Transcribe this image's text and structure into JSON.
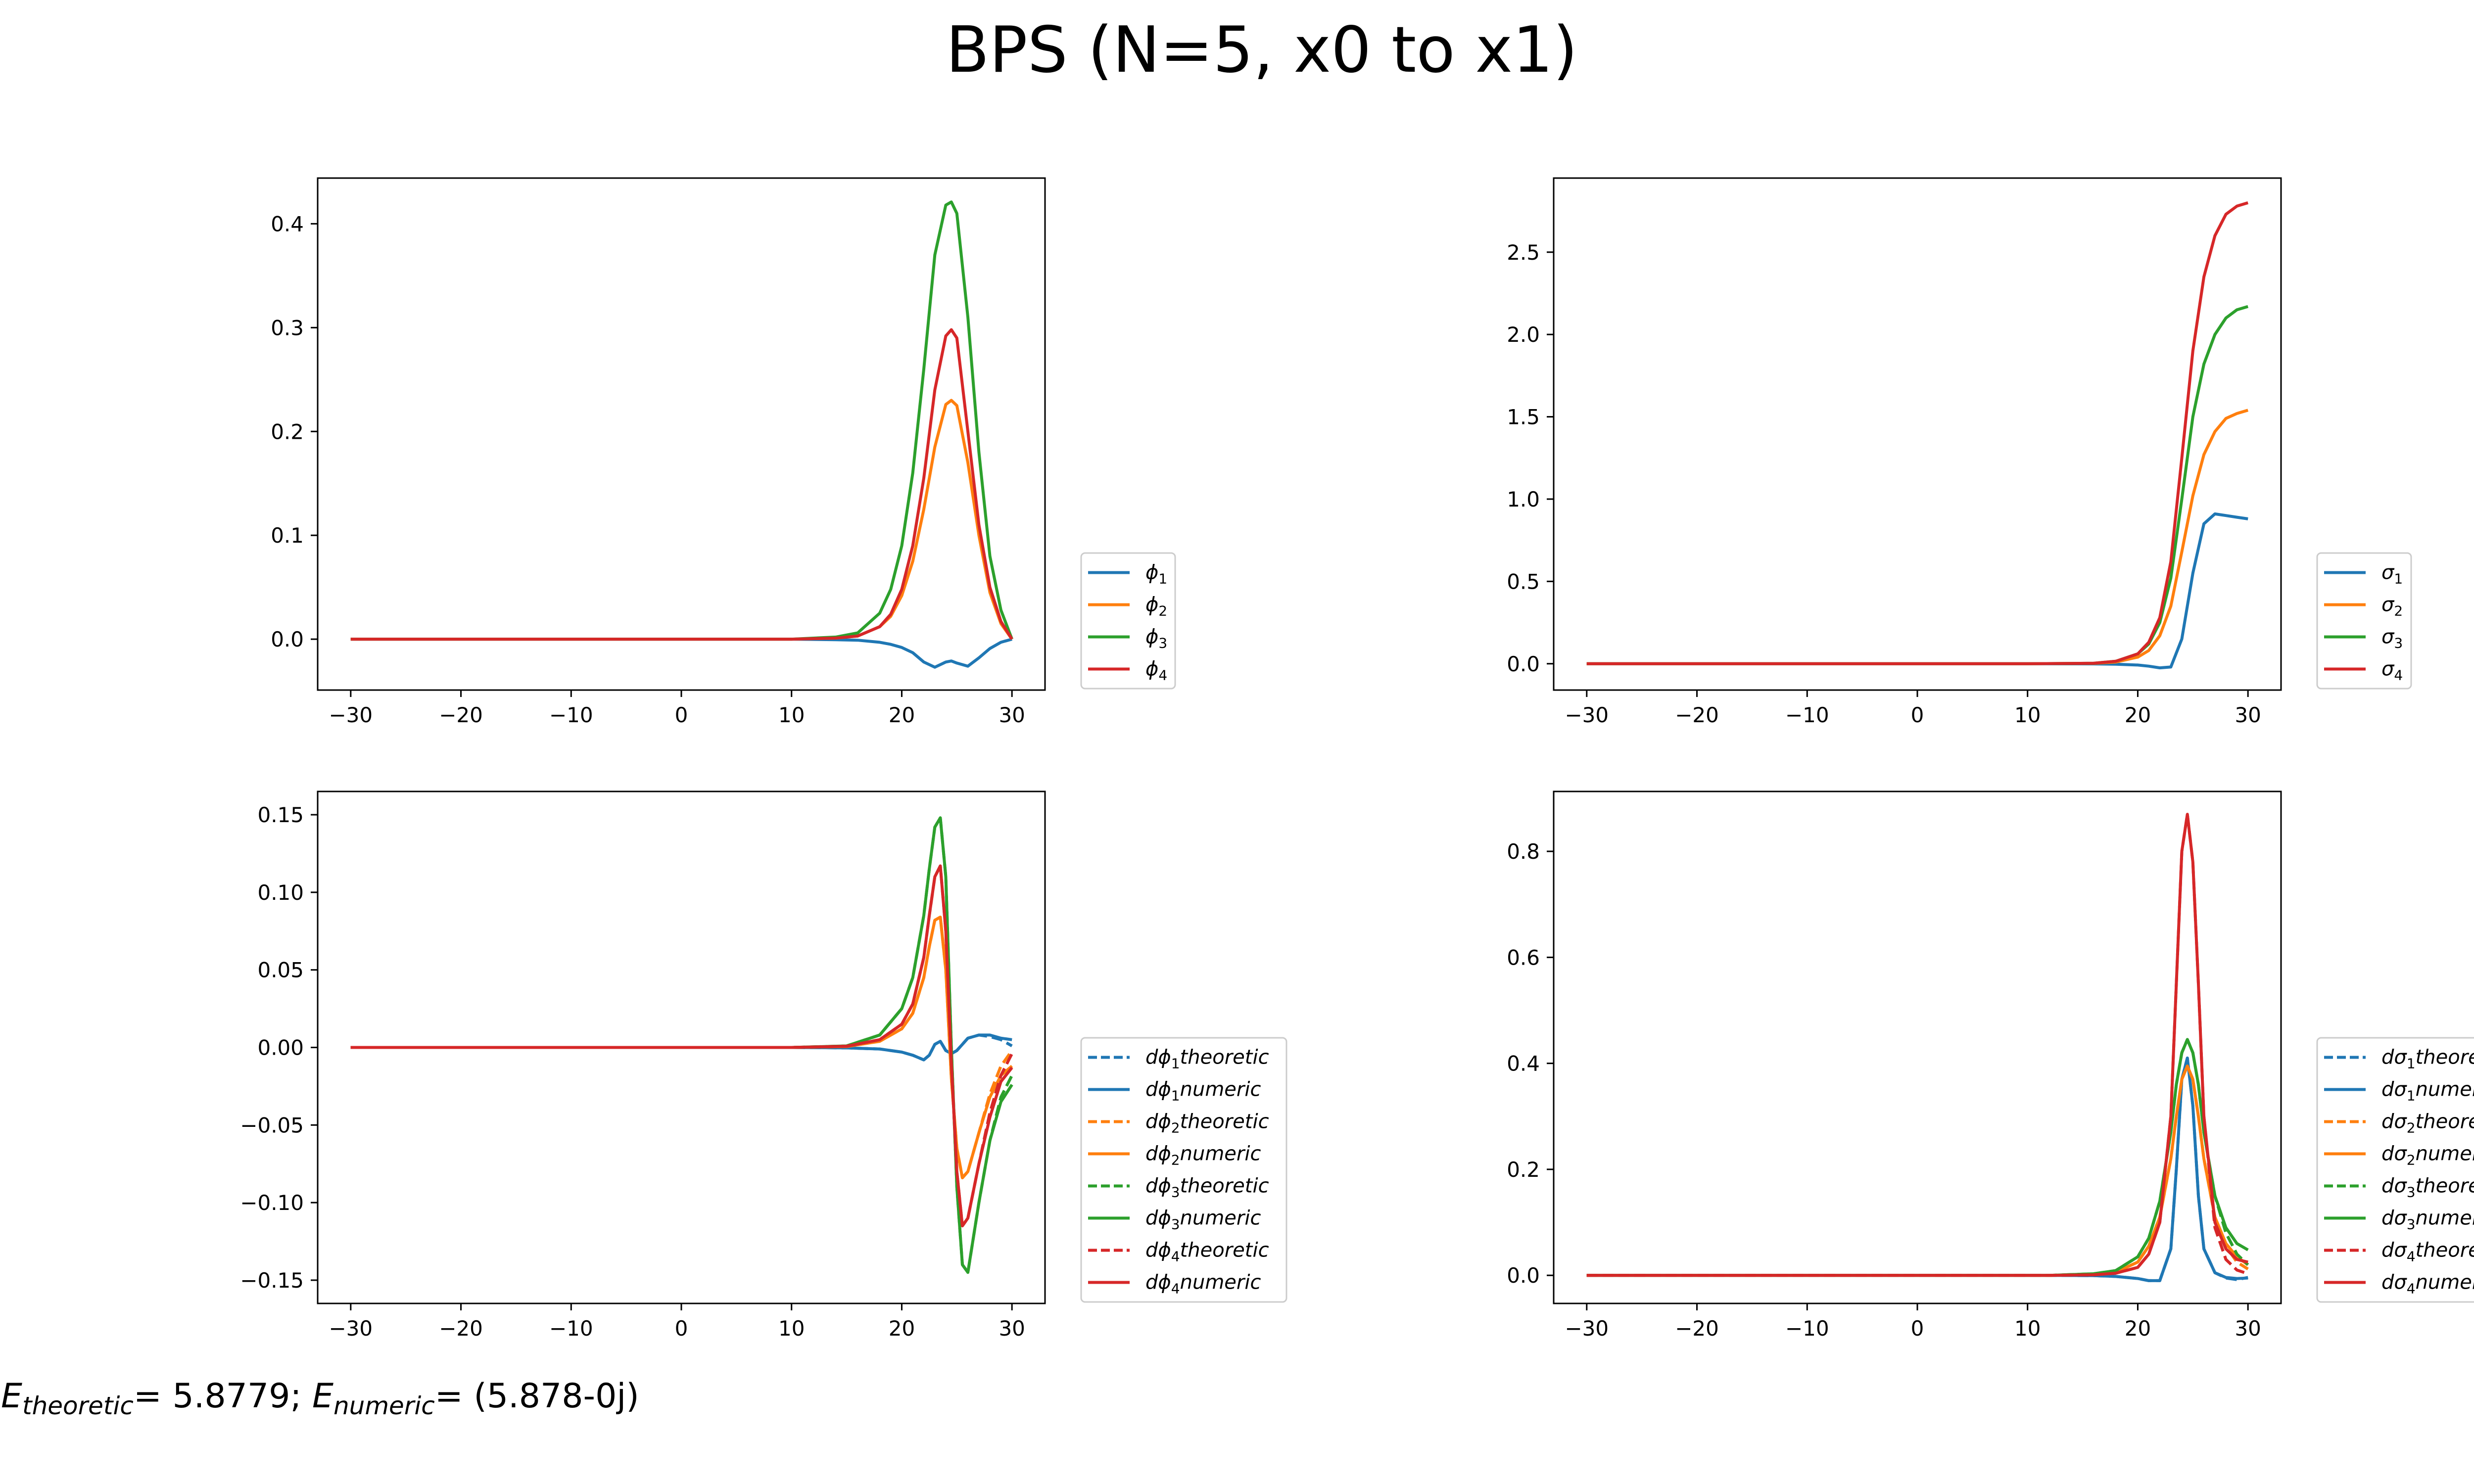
{
  "figure": {
    "title": "BPS (N=5, x0 to x1)",
    "energy": {
      "theoretic_symbol": "E",
      "theoretic_sub": "theoretic",
      "theoretic_value": "= 5.8779; ",
      "numeric_symbol": "E",
      "numeric_sub": "numeric",
      "numeric_value": "= (5.878-0j)"
    }
  },
  "colors": {
    "c1": "#1f77b4",
    "c2": "#ff7f0e",
    "c3": "#2ca02c",
    "c4": "#d62728"
  },
  "chart_data": [
    {
      "id": "phi",
      "type": "line",
      "title": "",
      "xlabel": "",
      "ylabel": "",
      "xlim": [
        -33,
        33
      ],
      "ylim": [
        -0.049,
        0.444
      ],
      "xticks": [
        -30,
        -20,
        -10,
        0,
        10,
        20,
        30
      ],
      "xtick_labels": [
        "−30",
        "−20",
        "−10",
        "0",
        "10",
        "20",
        "30"
      ],
      "yticks": [
        0.0,
        0.1,
        0.2,
        0.3,
        0.4
      ],
      "ytick_labels": [
        "0.0",
        "0.1",
        "0.2",
        "0.3",
        "0.4"
      ],
      "grid": false,
      "legend_loc": "outside-right-bottom",
      "x": [
        -30,
        10,
        14,
        16,
        18,
        19,
        20,
        21,
        22,
        23,
        24,
        24.5,
        25,
        26,
        27,
        28,
        29,
        30
      ],
      "series": [
        {
          "symbol": "ϕ",
          "sub": "1",
          "color": "#1f77b4",
          "dash": "solid",
          "values": [
            0,
            0,
            -0.0005,
            -0.001,
            -0.003,
            -0.005,
            -0.008,
            -0.013,
            -0.022,
            -0.027,
            -0.022,
            -0.021,
            -0.023,
            -0.026,
            -0.018,
            -0.009,
            -0.003,
            0
          ]
        },
        {
          "symbol": "ϕ",
          "sub": "2",
          "color": "#ff7f0e",
          "dash": "solid",
          "values": [
            0,
            0,
            0.001,
            0.003,
            0.012,
            0.022,
            0.042,
            0.075,
            0.125,
            0.185,
            0.226,
            0.23,
            0.225,
            0.17,
            0.1,
            0.045,
            0.015,
            0
          ]
        },
        {
          "symbol": "ϕ",
          "sub": "3",
          "color": "#2ca02c",
          "dash": "solid",
          "values": [
            0,
            0,
            0.002,
            0.006,
            0.025,
            0.048,
            0.09,
            0.16,
            0.26,
            0.37,
            0.418,
            0.421,
            0.41,
            0.31,
            0.18,
            0.08,
            0.028,
            0
          ]
        },
        {
          "symbol": "ϕ",
          "sub": "4",
          "color": "#d62728",
          "dash": "solid",
          "values": [
            0,
            0,
            0.001,
            0.003,
            0.012,
            0.024,
            0.048,
            0.09,
            0.155,
            0.24,
            0.292,
            0.298,
            0.29,
            0.2,
            0.11,
            0.05,
            0.017,
            0
          ]
        }
      ]
    },
    {
      "id": "sigma",
      "type": "line",
      "title": "",
      "xlabel": "",
      "ylabel": "",
      "xlim": [
        -33,
        33
      ],
      "ylim": [
        -0.16,
        2.95
      ],
      "xticks": [
        -30,
        -20,
        -10,
        0,
        10,
        20,
        30
      ],
      "xtick_labels": [
        "−30",
        "−20",
        "−10",
        "0",
        "10",
        "20",
        "30"
      ],
      "yticks": [
        0.0,
        0.5,
        1.0,
        1.5,
        2.0,
        2.5
      ],
      "ytick_labels": [
        "0.0",
        "0.5",
        "1.0",
        "1.5",
        "2.0",
        "2.5"
      ],
      "grid": false,
      "legend_loc": "outside-right-bottom",
      "x": [
        -30,
        10,
        16,
        18,
        20,
        21,
        22,
        23,
        24,
        25,
        26,
        27,
        28,
        29,
        30
      ],
      "series": [
        {
          "symbol": "σ",
          "sub": "1",
          "color": "#1f77b4",
          "dash": "solid",
          "values": [
            0,
            0,
            -0.001,
            -0.003,
            -0.008,
            -0.015,
            -0.025,
            -0.02,
            0.15,
            0.55,
            0.85,
            0.91,
            0.9,
            0.89,
            0.88
          ]
        },
        {
          "symbol": "σ",
          "sub": "2",
          "color": "#ff7f0e",
          "dash": "solid",
          "values": [
            0,
            0,
            0.002,
            0.01,
            0.04,
            0.08,
            0.17,
            0.35,
            0.68,
            1.02,
            1.27,
            1.41,
            1.49,
            1.52,
            1.54
          ]
        },
        {
          "symbol": "σ",
          "sub": "3",
          "color": "#2ca02c",
          "dash": "solid",
          "values": [
            0,
            0,
            0.003,
            0.015,
            0.06,
            0.12,
            0.25,
            0.52,
            1.0,
            1.5,
            1.82,
            2.0,
            2.1,
            2.15,
            2.17
          ]
        },
        {
          "symbol": "σ",
          "sub": "4",
          "color": "#d62728",
          "dash": "solid",
          "values": [
            0,
            0,
            0.003,
            0.015,
            0.06,
            0.13,
            0.28,
            0.62,
            1.25,
            1.9,
            2.35,
            2.6,
            2.73,
            2.78,
            2.8
          ]
        }
      ]
    },
    {
      "id": "dphi",
      "type": "line",
      "title": "",
      "xlabel": "",
      "ylabel": "",
      "xlim": [
        -33,
        33
      ],
      "ylim": [
        -0.165,
        0.165
      ],
      "xticks": [
        -30,
        -20,
        -10,
        0,
        10,
        20,
        30
      ],
      "xtick_labels": [
        "−30",
        "−20",
        "−10",
        "0",
        "10",
        "20",
        "30"
      ],
      "yticks": [
        -0.15,
        -0.1,
        -0.05,
        0.0,
        0.05,
        0.1,
        0.15
      ],
      "ytick_labels": [
        "−0.15",
        "−0.10",
        "−0.05",
        "0.00",
        "0.05",
        "0.10",
        "0.15"
      ],
      "grid": false,
      "legend_loc": "outside-right-bottom",
      "x": [
        -30,
        10,
        15,
        18,
        20,
        21,
        22,
        22.5,
        23,
        23.5,
        24,
        24.5,
        25,
        25.5,
        26,
        27,
        28,
        29,
        30
      ],
      "series": [
        {
          "symbol": "ϕ",
          "sub": "1",
          "prefix": "d",
          "suffix": "theoretic",
          "color": "#1f77b4",
          "dash": "dashed",
          "values": [
            0,
            0,
            -0.0003,
            -0.001,
            -0.003,
            -0.005,
            -0.008,
            -0.005,
            0.002,
            0.004,
            -0.002,
            -0.004,
            -0.002,
            0.002,
            0.006,
            0.008,
            0.007,
            0.005,
            0.001
          ]
        },
        {
          "symbol": "ϕ",
          "sub": "1",
          "prefix": "d",
          "suffix": "numeric",
          "color": "#1f77b4",
          "dash": "solid",
          "values": [
            0,
            0,
            -0.0003,
            -0.001,
            -0.003,
            -0.005,
            -0.008,
            -0.005,
            0.002,
            0.004,
            -0.002,
            -0.004,
            -0.002,
            0.002,
            0.006,
            0.008,
            0.008,
            0.006,
            0.005
          ]
        },
        {
          "symbol": "ϕ",
          "sub": "2",
          "prefix": "d",
          "suffix": "theoretic",
          "color": "#ff7f0e",
          "dash": "dashed",
          "values": [
            0,
            0,
            0.0006,
            0.004,
            0.012,
            0.022,
            0.045,
            0.065,
            0.082,
            0.084,
            0.05,
            -0.02,
            -0.065,
            -0.084,
            -0.08,
            -0.055,
            -0.03,
            -0.012,
            -0.002
          ]
        },
        {
          "symbol": "ϕ",
          "sub": "2",
          "prefix": "d",
          "suffix": "numeric",
          "color": "#ff7f0e",
          "dash": "solid",
          "values": [
            0,
            0,
            0.0006,
            0.004,
            0.012,
            0.022,
            0.045,
            0.065,
            0.082,
            0.084,
            0.05,
            -0.02,
            -0.065,
            -0.084,
            -0.08,
            -0.055,
            -0.032,
            -0.018,
            -0.012
          ]
        },
        {
          "symbol": "ϕ",
          "sub": "3",
          "prefix": "d",
          "suffix": "theoretic",
          "color": "#2ca02c",
          "dash": "dashed",
          "values": [
            0,
            0,
            0.001,
            0.008,
            0.025,
            0.045,
            0.085,
            0.115,
            0.142,
            0.148,
            0.11,
            0.0,
            -0.09,
            -0.14,
            -0.145,
            -0.1,
            -0.06,
            -0.032,
            -0.018
          ]
        },
        {
          "symbol": "ϕ",
          "sub": "3",
          "prefix": "d",
          "suffix": "numeric",
          "color": "#2ca02c",
          "dash": "solid",
          "values": [
            0,
            0,
            0.001,
            0.008,
            0.025,
            0.045,
            0.085,
            0.115,
            0.142,
            0.148,
            0.11,
            0.0,
            -0.09,
            -0.14,
            -0.145,
            -0.1,
            -0.06,
            -0.035,
            -0.024
          ]
        },
        {
          "symbol": "ϕ",
          "sub": "4",
          "prefix": "d",
          "suffix": "theoretic",
          "color": "#d62728",
          "dash": "dashed",
          "values": [
            0,
            0,
            0.0008,
            0.005,
            0.015,
            0.028,
            0.058,
            0.085,
            0.11,
            0.117,
            0.075,
            -0.01,
            -0.08,
            -0.115,
            -0.11,
            -0.075,
            -0.042,
            -0.018,
            -0.004
          ]
        },
        {
          "symbol": "ϕ",
          "sub": "4",
          "prefix": "d",
          "suffix": "numeric",
          "color": "#d62728",
          "dash": "solid",
          "values": [
            0,
            0,
            0.0008,
            0.005,
            0.015,
            0.028,
            0.058,
            0.085,
            0.11,
            0.117,
            0.075,
            -0.01,
            -0.08,
            -0.115,
            -0.11,
            -0.075,
            -0.045,
            -0.022,
            -0.013
          ]
        }
      ]
    },
    {
      "id": "dsigma",
      "type": "line",
      "title": "",
      "xlabel": "",
      "ylabel": "",
      "xlim": [
        -33,
        33
      ],
      "ylim": [
        -0.053,
        0.913
      ],
      "xticks": [
        -30,
        -20,
        -10,
        0,
        10,
        20,
        30
      ],
      "xtick_labels": [
        "−30",
        "−20",
        "−10",
        "0",
        "10",
        "20",
        "30"
      ],
      "yticks": [
        0.0,
        0.2,
        0.4,
        0.6,
        0.8
      ],
      "ytick_labels": [
        "0.0",
        "0.2",
        "0.4",
        "0.6",
        "0.8"
      ],
      "grid": false,
      "legend_loc": "outside-right-bottom",
      "x": [
        -30,
        12,
        16,
        18,
        20,
        21,
        22,
        23,
        23.5,
        24,
        24.5,
        25,
        25.5,
        26,
        27,
        28,
        29,
        30
      ],
      "series": [
        {
          "symbol": "σ",
          "sub": "1",
          "prefix": "d",
          "suffix": "theoretic",
          "color": "#1f77b4",
          "dash": "dashed",
          "values": [
            0,
            0,
            -0.0005,
            -0.002,
            -0.006,
            -0.01,
            -0.01,
            0.05,
            0.2,
            0.37,
            0.41,
            0.32,
            0.15,
            0.05,
            0.005,
            -0.005,
            -0.008,
            -0.004
          ]
        },
        {
          "symbol": "σ",
          "sub": "1",
          "prefix": "d",
          "suffix": "numeric",
          "color": "#1f77b4",
          "dash": "solid",
          "values": [
            0,
            0,
            -0.0005,
            -0.002,
            -0.006,
            -0.01,
            -0.01,
            0.05,
            0.2,
            0.37,
            0.41,
            0.32,
            0.15,
            0.05,
            0.005,
            -0.004,
            -0.006,
            -0.005
          ]
        },
        {
          "symbol": "σ",
          "sub": "2",
          "prefix": "d",
          "suffix": "theoretic",
          "color": "#ff7f0e",
          "dash": "dashed",
          "values": [
            0,
            0,
            0.002,
            0.006,
            0.025,
            0.055,
            0.11,
            0.22,
            0.3,
            0.37,
            0.395,
            0.37,
            0.3,
            0.22,
            0.11,
            0.055,
            0.025,
            0.012
          ]
        },
        {
          "symbol": "σ",
          "sub": "2",
          "prefix": "d",
          "suffix": "numeric",
          "color": "#ff7f0e",
          "dash": "solid",
          "values": [
            0,
            0,
            0.002,
            0.006,
            0.025,
            0.055,
            0.11,
            0.22,
            0.3,
            0.37,
            0.395,
            0.37,
            0.3,
            0.22,
            0.11,
            0.06,
            0.035,
            0.02
          ]
        },
        {
          "symbol": "σ",
          "sub": "3",
          "prefix": "d",
          "suffix": "theoretic",
          "color": "#2ca02c",
          "dash": "dashed",
          "values": [
            0,
            0,
            0.003,
            0.009,
            0.035,
            0.07,
            0.14,
            0.27,
            0.36,
            0.42,
            0.445,
            0.42,
            0.36,
            0.27,
            0.15,
            0.08,
            0.04,
            0.02
          ]
        },
        {
          "symbol": "σ",
          "sub": "3",
          "prefix": "d",
          "suffix": "numeric",
          "color": "#2ca02c",
          "dash": "solid",
          "values": [
            0,
            0,
            0.003,
            0.009,
            0.035,
            0.07,
            0.14,
            0.27,
            0.36,
            0.42,
            0.445,
            0.42,
            0.36,
            0.27,
            0.15,
            0.09,
            0.06,
            0.048
          ]
        },
        {
          "symbol": "σ",
          "sub": "4",
          "prefix": "d",
          "suffix": "theoretic",
          "color": "#d62728",
          "dash": "dashed",
          "values": [
            0,
            0,
            0.001,
            0.004,
            0.015,
            0.04,
            0.1,
            0.3,
            0.55,
            0.8,
            0.87,
            0.78,
            0.55,
            0.3,
            0.09,
            0.03,
            0.01,
            0.003
          ]
        },
        {
          "symbol": "σ",
          "sub": "4",
          "prefix": "d",
          "suffix": "numeric",
          "color": "#d62728",
          "dash": "solid",
          "values": [
            0,
            0,
            0.001,
            0.004,
            0.015,
            0.04,
            0.1,
            0.3,
            0.55,
            0.8,
            0.87,
            0.78,
            0.55,
            0.3,
            0.1,
            0.05,
            0.03,
            0.025
          ]
        }
      ]
    }
  ]
}
